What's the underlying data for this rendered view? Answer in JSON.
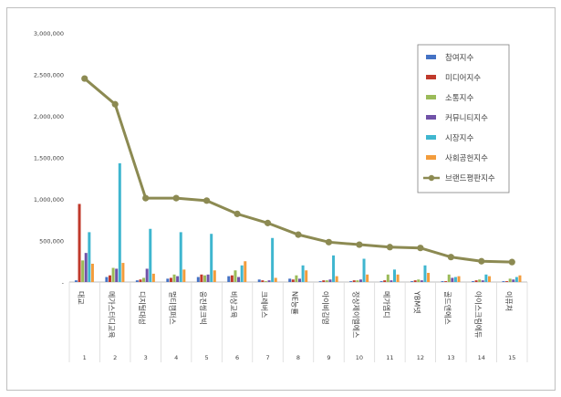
{
  "chart_data": {
    "type": "bar",
    "title": "",
    "xlabel": "",
    "ylabel": "",
    "ylim": [
      0,
      3000000
    ],
    "yticks": [
      0,
      500000,
      1000000,
      1500000,
      2000000,
      2500000,
      3000000
    ],
    "ytick_labels": [
      "-",
      "500,000",
      "1,000,000",
      "1,500,000",
      "2,000,000",
      "2,500,000",
      "3,000,000"
    ],
    "grid": false,
    "legend_position": "top-right",
    "ranks": [
      "1",
      "2",
      "3",
      "4",
      "5",
      "6",
      "7",
      "8",
      "9",
      "10",
      "11",
      "12",
      "13",
      "14",
      "15"
    ],
    "categories": [
      "대교",
      "메가스터디교육",
      "디지털대성",
      "멀티캠퍼스",
      "웅진씽크빅",
      "비상교육",
      "크레버스",
      "NE능률",
      "아이비김영",
      "정상제이엘에스",
      "메가엠디",
      "YBM넷",
      "골드앤에스",
      "아이스크림에듀",
      "이퓨쳐"
    ],
    "series": [
      {
        "name": "참여지수",
        "kind": "bar",
        "color": "#4472c4",
        "values": [
          20000,
          60000,
          20000,
          40000,
          60000,
          70000,
          30000,
          40000,
          10000,
          10000,
          10000,
          10000,
          10000,
          10000,
          10000
        ]
      },
      {
        "name": "미디어지수",
        "kind": "bar",
        "color": "#c0392b",
        "values": [
          940000,
          80000,
          30000,
          50000,
          90000,
          80000,
          20000,
          30000,
          20000,
          20000,
          20000,
          20000,
          10000,
          20000,
          10000
        ]
      },
      {
        "name": "소통지수",
        "kind": "bar",
        "color": "#9bbb59",
        "values": [
          260000,
          170000,
          50000,
          90000,
          80000,
          140000,
          10000,
          80000,
          20000,
          20000,
          90000,
          30000,
          90000,
          30000,
          40000
        ]
      },
      {
        "name": "커뮤니티지수",
        "kind": "bar",
        "color": "#7052a8",
        "values": [
          350000,
          160000,
          160000,
          70000,
          90000,
          60000,
          20000,
          40000,
          30000,
          30000,
          20000,
          20000,
          50000,
          20000,
          30000
        ]
      },
      {
        "name": "시장지수",
        "kind": "bar",
        "color": "#3fb6cf",
        "values": [
          600000,
          1430000,
          640000,
          600000,
          580000,
          200000,
          530000,
          200000,
          320000,
          280000,
          150000,
          200000,
          60000,
          90000,
          60000
        ]
      },
      {
        "name": "사회공헌지수",
        "kind": "bar",
        "color": "#f39c3c",
        "values": [
          220000,
          230000,
          100000,
          150000,
          140000,
          250000,
          50000,
          140000,
          70000,
          90000,
          90000,
          110000,
          70000,
          70000,
          80000
        ]
      },
      {
        "name": "브랜드평판지수",
        "kind": "line",
        "color": "#8c8a52",
        "values": [
          2450000,
          2140000,
          1010000,
          1010000,
          980000,
          820000,
          710000,
          570000,
          480000,
          450000,
          420000,
          410000,
          300000,
          250000,
          240000
        ]
      }
    ]
  }
}
